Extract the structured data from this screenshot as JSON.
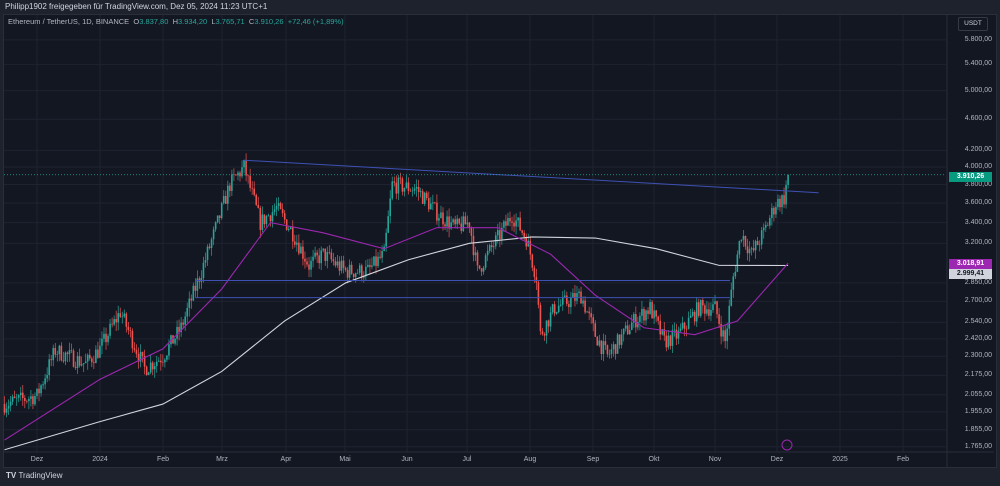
{
  "header": {
    "shared_by": "Philipp1902 freigegeben für TradingView.com, Dez 05, 2024 11:23 UTC+1"
  },
  "legend": {
    "symbol": "Ethereum / TetherUS, 1D, BINANCE",
    "o_label": "O",
    "o": "3.837,80",
    "h_label": "H",
    "h": "3.934,20",
    "l_label": "L",
    "l": "3.765,71",
    "c_label": "C",
    "c": "3.910,26",
    "change": "+72,46 (+1,89%)"
  },
  "price_axis": {
    "unit": "USDT",
    "ticks": [
      "5.800,00",
      "5.400,00",
      "5.000,00",
      "4.600,00",
      "4.200,00",
      "4.000,00",
      "3.800,00",
      "3.600,00",
      "3.400,00",
      "3.200,00",
      "2.850,00",
      "2.700,00",
      "2.540,00",
      "2.420,00",
      "2.300,00",
      "2.175,00",
      "2.055,00",
      "1.955,00",
      "1.855,00",
      "1.765,00"
    ]
  },
  "time_axis": {
    "ticks": [
      "Dez",
      "2024",
      "Feb",
      "Mrz",
      "Apr",
      "Mai",
      "Jun",
      "Jul",
      "Aug",
      "Sep",
      "Okt",
      "Nov",
      "Dez",
      "2025",
      "Feb"
    ]
  },
  "badges": {
    "last_price": "3.910,26",
    "ma_magenta": "3.018,91",
    "ma_gray": "2.999,41"
  },
  "colors": {
    "up": "#26a69a",
    "down": "#ef5350",
    "ma_fast": "#9c27b0",
    "ma_slow": "#d1d4dc",
    "drawings": "#3f51b5",
    "last_badge": "#089981"
  },
  "footer": {
    "brand": "TradingView"
  },
  "chart_data": {
    "type": "candlestick",
    "scale": "log",
    "symbol": "ETHUSDT",
    "interval": "1D",
    "approx_closes": [
      [
        "2023-11-15",
        2000
      ],
      [
        "2023-12-01",
        2050
      ],
      [
        "2023-12-10",
        2340
      ],
      [
        "2023-12-25",
        2250
      ],
      [
        "2024-01-01",
        2350
      ],
      [
        "2024-01-11",
        2620
      ],
      [
        "2024-01-23",
        2220
      ],
      [
        "2024-02-01",
        2300
      ],
      [
        "2024-02-10",
        2500
      ],
      [
        "2024-02-20",
        2950
      ],
      [
        "2024-02-28",
        3400
      ],
      [
        "2024-03-05",
        3800
      ],
      [
        "2024-03-12",
        4000
      ],
      [
        "2024-03-20",
        3400
      ],
      [
        "2024-03-28",
        3550
      ],
      [
        "2024-04-05",
        3300
      ],
      [
        "2024-04-13",
        3000
      ],
      [
        "2024-04-20",
        3100
      ],
      [
        "2024-05-01",
        2950
      ],
      [
        "2024-05-12",
        2950
      ],
      [
        "2024-05-20",
        3100
      ],
      [
        "2024-05-24",
        3800
      ],
      [
        "2024-06-05",
        3750
      ],
      [
        "2024-06-15",
        3500
      ],
      [
        "2024-06-24",
        3350
      ],
      [
        "2024-07-01",
        3400
      ],
      [
        "2024-07-05",
        2950
      ],
      [
        "2024-07-15",
        3250
      ],
      [
        "2024-07-22",
        3480
      ],
      [
        "2024-07-29",
        3250
      ],
      [
        "2024-08-03",
        2900
      ],
      [
        "2024-08-05",
        2450
      ],
      [
        "2024-08-12",
        2650
      ],
      [
        "2024-08-25",
        2750
      ],
      [
        "2024-09-01",
        2450
      ],
      [
        "2024-09-07",
        2300
      ],
      [
        "2024-09-20",
        2550
      ],
      [
        "2024-09-28",
        2650
      ],
      [
        "2024-10-05",
        2400
      ],
      [
        "2024-10-12",
        2450
      ],
      [
        "2024-10-22",
        2650
      ],
      [
        "2024-10-30",
        2650
      ],
      [
        "2024-11-04",
        2400
      ],
      [
        "2024-11-08",
        2900
      ],
      [
        "2024-11-12",
        3300
      ],
      [
        "2024-11-17",
        3100
      ],
      [
        "2024-11-23",
        3300
      ],
      [
        "2024-11-29",
        3600
      ],
      [
        "2024-12-03",
        3650
      ],
      [
        "2024-12-05",
        3910
      ]
    ],
    "ma_fast": [
      [
        "2023-11-15",
        1800
      ],
      [
        "2024-01-01",
        2150
      ],
      [
        "2024-02-01",
        2350
      ],
      [
        "2024-03-01",
        2800
      ],
      [
        "2024-03-25",
        3400
      ],
      [
        "2024-04-20",
        3300
      ],
      [
        "2024-05-20",
        3150
      ],
      [
        "2024-06-15",
        3350
      ],
      [
        "2024-07-15",
        3350
      ],
      [
        "2024-08-10",
        3100
      ],
      [
        "2024-09-01",
        2750
      ],
      [
        "2024-09-25",
        2500
      ],
      [
        "2024-10-20",
        2450
      ],
      [
        "2024-11-10",
        2550
      ],
      [
        "2024-12-05",
        3019
      ]
    ],
    "ma_slow": [
      [
        "2023-11-15",
        1750
      ],
      [
        "2024-01-01",
        1900
      ],
      [
        "2024-02-01",
        2000
      ],
      [
        "2024-03-01",
        2200
      ],
      [
        "2024-04-01",
        2550
      ],
      [
        "2024-05-01",
        2850
      ],
      [
        "2024-06-01",
        3050
      ],
      [
        "2024-07-01",
        3200
      ],
      [
        "2024-08-01",
        3260
      ],
      [
        "2024-09-01",
        3250
      ],
      [
        "2024-10-01",
        3150
      ],
      [
        "2024-11-01",
        3000
      ],
      [
        "2024-12-05",
        2999
      ]
    ],
    "horizontal_levels": [
      2870,
      2730
    ],
    "trendline": [
      [
        "2024-03-12",
        4080
      ],
      [
        "2024-12-20",
        3710
      ]
    ]
  }
}
